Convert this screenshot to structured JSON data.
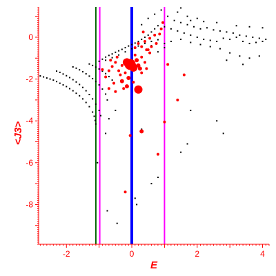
{
  "chart_data": {
    "type": "scatter",
    "xlabel": "E",
    "ylabel": "<J3>",
    "xlim": [
      -2.85,
      4.2
    ],
    "ylim": [
      -9.9,
      1.45
    ],
    "x_ticks": [
      -2,
      0,
      2,
      4
    ],
    "x_tick_labels": [
      "-2",
      "0",
      "2",
      "4"
    ],
    "y_ticks": [
      0,
      -2,
      -4,
      -6,
      -8
    ],
    "y_tick_labels": [
      "0",
      "-2",
      "-4",
      "-6",
      "-8"
    ],
    "grid": false,
    "axis_color": "#ff0000",
    "vertical_lines": [
      {
        "x": -1.1,
        "color": "#006400"
      },
      {
        "x": -0.98,
        "color": "#ff00ff"
      },
      {
        "x": 0.0,
        "color": "#0000ff"
      },
      {
        "x": 1.0,
        "color": "#ff00ff"
      }
    ],
    "series": [
      {
        "color": "#000000",
        "points": [
          [
            -2.8,
            -1.85
          ],
          [
            -2.7,
            -1.9
          ],
          [
            -2.6,
            -1.95
          ],
          [
            -2.5,
            -2.0
          ],
          [
            -2.4,
            -2.05
          ],
          [
            -2.3,
            -2.12
          ],
          [
            -2.2,
            -2.2
          ],
          [
            -2.1,
            -2.28
          ],
          [
            -2.0,
            -2.36
          ],
          [
            -1.9,
            -2.46
          ],
          [
            -1.8,
            -2.56
          ],
          [
            -1.7,
            -2.68
          ],
          [
            -1.6,
            -2.8
          ],
          [
            -1.5,
            -2.95
          ],
          [
            -1.4,
            -3.12
          ],
          [
            -1.3,
            -3.32
          ],
          [
            -1.2,
            -3.58
          ],
          [
            -1.15,
            -3.78
          ],
          [
            -1.12,
            -3.98
          ],
          [
            -1.1,
            -4.15
          ],
          [
            -2.3,
            -1.62
          ],
          [
            -2.2,
            -1.68
          ],
          [
            -2.1,
            -1.76
          ],
          [
            -2.0,
            -1.84
          ],
          [
            -1.9,
            -1.93
          ],
          [
            -1.8,
            -2.03
          ],
          [
            -1.7,
            -2.14
          ],
          [
            -1.6,
            -2.26
          ],
          [
            -1.5,
            -2.4
          ],
          [
            -1.4,
            -2.56
          ],
          [
            -1.3,
            -2.74
          ],
          [
            -1.2,
            -2.95
          ],
          [
            -1.1,
            -3.2
          ],
          [
            -1.0,
            -3.5
          ],
          [
            -0.95,
            -3.75
          ],
          [
            -1.8,
            -1.42
          ],
          [
            -1.7,
            -1.48
          ],
          [
            -1.6,
            -1.56
          ],
          [
            -1.5,
            -1.65
          ],
          [
            -1.4,
            -1.75
          ],
          [
            -1.3,
            -1.86
          ],
          [
            -1.2,
            -1.98
          ],
          [
            -1.1,
            -2.12
          ],
          [
            -1.0,
            -2.28
          ],
          [
            -0.9,
            -2.48
          ],
          [
            -0.8,
            -2.72
          ],
          [
            -0.75,
            -3.0
          ],
          [
            -1.3,
            -1.28
          ],
          [
            -1.2,
            -1.35
          ],
          [
            -1.1,
            -1.43
          ],
          [
            -1.0,
            -1.52
          ],
          [
            -0.9,
            -1.62
          ],
          [
            -0.8,
            -1.74
          ],
          [
            -0.7,
            -1.88
          ],
          [
            -0.6,
            -2.05
          ],
          [
            -1.0,
            -1.15
          ],
          [
            -0.9,
            -1.05
          ],
          [
            -0.8,
            -0.95
          ],
          [
            -0.7,
            -0.87
          ],
          [
            -0.6,
            -0.8
          ],
          [
            -0.5,
            -0.72
          ],
          [
            -0.4,
            -0.65
          ],
          [
            -0.3,
            -0.58
          ],
          [
            -0.2,
            -0.5
          ],
          [
            -0.1,
            -0.42
          ],
          [
            0.0,
            -0.35
          ],
          [
            0.1,
            -0.28
          ],
          [
            0.2,
            -0.2
          ],
          [
            0.3,
            -0.1
          ],
          [
            0.4,
            0.0
          ],
          [
            0.5,
            0.1
          ],
          [
            0.6,
            0.25
          ],
          [
            0.7,
            0.4
          ],
          [
            0.8,
            0.55
          ],
          [
            -0.8,
            -1.1
          ],
          [
            -0.6,
            -0.98
          ],
          [
            -0.4,
            -0.85
          ],
          [
            -0.2,
            -0.7
          ],
          [
            0.0,
            -0.55
          ],
          [
            0.2,
            -0.42
          ],
          [
            0.4,
            -0.3
          ],
          [
            0.6,
            -0.2
          ],
          [
            0.8,
            -0.12
          ],
          [
            0.3,
            0.6
          ],
          [
            0.5,
            0.9
          ],
          [
            0.7,
            1.1
          ],
          [
            0.9,
            1.3
          ],
          [
            1.1,
            1.0
          ],
          [
            1.3,
            0.8
          ],
          [
            1.5,
            0.7
          ],
          [
            1.7,
            0.6
          ],
          [
            1.9,
            0.5
          ],
          [
            2.1,
            0.4
          ],
          [
            2.3,
            0.45
          ],
          [
            2.5,
            0.35
          ],
          [
            2.7,
            0.3
          ],
          [
            2.9,
            0.25
          ],
          [
            3.1,
            0.2
          ],
          [
            3.3,
            0.1
          ],
          [
            3.5,
            0.05
          ],
          [
            3.7,
            0.0
          ],
          [
            3.9,
            -0.05
          ],
          [
            4.1,
            -0.1
          ],
          [
            1.0,
            0.5
          ],
          [
            1.2,
            0.4
          ],
          [
            1.4,
            0.3
          ],
          [
            1.6,
            0.2
          ],
          [
            1.8,
            0.1
          ],
          [
            2.0,
            0.0
          ],
          [
            2.2,
            -0.1
          ],
          [
            2.4,
            -0.15
          ],
          [
            2.6,
            -0.2
          ],
          [
            2.8,
            -0.05
          ],
          [
            3.0,
            -0.1
          ],
          [
            3.2,
            0.0
          ],
          [
            3.4,
            -0.2
          ],
          [
            3.6,
            -0.3
          ],
          [
            3.8,
            -0.25
          ],
          [
            4.0,
            -0.2
          ],
          [
            1.0,
            -0.3
          ],
          [
            1.2,
            -0.2
          ],
          [
            1.5,
            -0.1
          ],
          [
            1.8,
            -0.25
          ],
          [
            2.1,
            -0.35
          ],
          [
            2.4,
            -0.45
          ],
          [
            2.7,
            -0.55
          ],
          [
            3.0,
            -0.75
          ],
          [
            3.3,
            -0.9
          ],
          [
            3.6,
            -1.0
          ],
          [
            3.9,
            -0.9
          ],
          [
            2.9,
            -1.1
          ],
          [
            3.4,
            -1.3
          ],
          [
            1.4,
            1.2
          ],
          [
            1.7,
            1.0
          ],
          [
            2.0,
            0.9
          ],
          [
            2.6,
            0.7
          ],
          [
            3.2,
            0.55
          ],
          [
            3.6,
            0.5
          ],
          [
            4.0,
            0.45
          ],
          [
            1.5,
            1.4
          ],
          [
            1.8,
            0.8
          ],
          [
            2.2,
            0.75
          ],
          [
            0.8,
            -0.7
          ],
          [
            1.0,
            -0.5
          ],
          [
            0.6,
            -0.4
          ],
          [
            0.5,
            -0.6
          ],
          [
            -0.5,
            -3.5
          ],
          [
            -0.7,
            -3.9
          ],
          [
            -0.8,
            -4.6
          ],
          [
            -1.05,
            -6.0
          ],
          [
            -0.75,
            -8.3
          ],
          [
            -0.45,
            -8.9
          ],
          [
            0.1,
            -7.7
          ],
          [
            0.15,
            -8.0
          ],
          [
            0.6,
            -7.0
          ],
          [
            0.8,
            -6.7
          ],
          [
            1.5,
            -5.5
          ],
          [
            1.7,
            -5.1
          ],
          [
            2.8,
            -4.6
          ],
          [
            2.6,
            -4.0
          ],
          [
            1.8,
            -3.5
          ],
          [
            0.3,
            -4.4
          ]
        ]
      },
      {
        "color": "#ff0000",
        "points": [
          [
            -0.5,
            -1.2,
            2
          ],
          [
            -0.6,
            -1.4,
            2
          ],
          [
            -0.7,
            -1.6,
            2
          ],
          [
            -0.4,
            -1.6,
            2
          ],
          [
            -0.3,
            -1.35,
            2
          ],
          [
            -0.2,
            -1.7,
            2
          ],
          [
            -0.15,
            -1.2,
            6
          ],
          [
            -0.05,
            -1.3,
            8
          ],
          [
            0.05,
            -1.45,
            6
          ],
          [
            0.15,
            -1.1,
            3
          ],
          [
            0.25,
            -1.5,
            3
          ],
          [
            0.3,
            -0.95,
            2
          ],
          [
            0.4,
            -1.2,
            2
          ],
          [
            0.45,
            -0.6,
            2
          ],
          [
            0.6,
            -0.45,
            2
          ],
          [
            0.75,
            -0.3,
            2
          ],
          [
            0.7,
            0.1,
            2
          ],
          [
            0.85,
            0.15,
            2
          ],
          [
            0.9,
            0.4,
            2
          ],
          [
            0.95,
            0.7,
            2
          ],
          [
            0.55,
            -0.75,
            2
          ],
          [
            0.3,
            -0.45,
            2
          ],
          [
            0.2,
            -0.3,
            2
          ],
          [
            0.1,
            -0.5,
            2
          ],
          [
            -0.1,
            -1.95,
            3
          ],
          [
            -0.3,
            -2.1,
            3
          ],
          [
            -0.55,
            -2.2,
            2
          ],
          [
            -0.7,
            -2.45,
            2
          ],
          [
            -0.25,
            -2.45,
            2
          ],
          [
            -0.15,
            -2.35,
            3
          ],
          [
            0.2,
            -2.5,
            6
          ],
          [
            0.05,
            -2.15,
            2
          ],
          [
            0.3,
            -1.7,
            2
          ],
          [
            0.45,
            -1.5,
            2
          ],
          [
            0.2,
            -1.35,
            3
          ],
          [
            -0.8,
            -1.9,
            2
          ],
          [
            -0.9,
            -1.55,
            2
          ],
          [
            0.3,
            -4.5,
            3
          ],
          [
            -0.05,
            -4.7,
            2
          ],
          [
            0.8,
            -5.6,
            2
          ],
          [
            -0.2,
            -7.4,
            2
          ],
          [
            0.5,
            -0.6,
            2
          ],
          [
            0.4,
            -0.2,
            2
          ],
          [
            0.35,
            0.25,
            2
          ],
          [
            0.55,
            -0.05,
            2
          ],
          [
            1.1,
            -1.3,
            2
          ],
          [
            1.6,
            -1.8,
            2
          ],
          [
            1.0,
            -4.05,
            2
          ],
          [
            1.4,
            -3.0,
            2
          ],
          [
            -0.65,
            -1.1,
            2
          ],
          [
            -0.45,
            -0.95,
            2
          ],
          [
            -0.35,
            -1.8,
            2
          ],
          [
            -0.5,
            -2.6,
            2
          ],
          [
            0.1,
            -0.85,
            2
          ]
        ]
      }
    ]
  }
}
